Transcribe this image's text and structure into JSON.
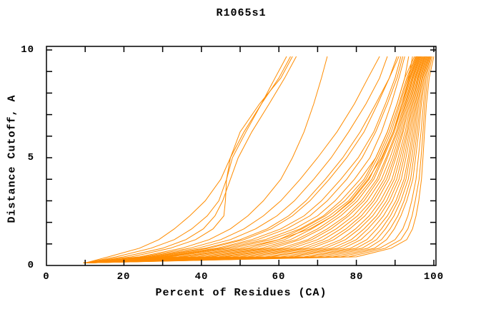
{
  "chart_data": {
    "type": "line",
    "title": "R1065s1",
    "xlabel": "Percent of Residues (CA)",
    "ylabel": "Distance Cutoff, A",
    "xlim": [
      0,
      100
    ],
    "ylim": [
      0,
      10
    ],
    "x_tick_labels": [
      "0",
      "20",
      "40",
      "60",
      "80",
      "100"
    ],
    "y_tick_labels": [
      "0",
      "5",
      "10"
    ],
    "x_minor_ticks": [
      10,
      20,
      30,
      40,
      50,
      60,
      70,
      80,
      90,
      100
    ],
    "y_minor_ticks": [
      1,
      2,
      3,
      4,
      5,
      6,
      7,
      8,
      9,
      10
    ],
    "grid": "off",
    "legend": "none",
    "line_color": "#ff8c00",
    "frame_color": "#000000",
    "background_color": "#ffffff",
    "curve_count": 38,
    "d_levels": [
      0.12,
      0.4,
      0.8,
      1.2,
      1.7,
      2.3,
      3.0,
      4.0,
      5.0,
      6.2,
      7.5,
      8.7,
      9.7
    ],
    "curves": [
      [
        10,
        16,
        24,
        29,
        33,
        37,
        41,
        45,
        47.5,
        51,
        55.5,
        60,
        63
      ],
      [
        10,
        18,
        27,
        33,
        37.5,
        41.5,
        44.5,
        46.5,
        47.5,
        50,
        55,
        60.5,
        63.5
      ],
      [
        10,
        20,
        30,
        36,
        40.5,
        43.5,
        45.5,
        47.5,
        49.5,
        53,
        57.5,
        61.5,
        64.5
      ],
      [
        10,
        22,
        32,
        38.5,
        43,
        45.8,
        46.2,
        46.5,
        48,
        51.5,
        55.5,
        59,
        62
      ],
      [
        10,
        24,
        35,
        42,
        47.5,
        52,
        56,
        60.5,
        63.5,
        66.5,
        69,
        71,
        72.5
      ],
      [
        10,
        25,
        37,
        45,
        51,
        56,
        60.5,
        65.5,
        70,
        75,
        79.5,
        83,
        86
      ],
      [
        10,
        26,
        39,
        47.5,
        54,
        59.5,
        64,
        69,
        73.5,
        78,
        82.5,
        86,
        88
      ],
      [
        10.5,
        28,
        42,
        51,
        58,
        63.5,
        68,
        73,
        77.5,
        82,
        85.5,
        88.5,
        90.5
      ],
      [
        9.5,
        30,
        45,
        54.5,
        62,
        68,
        72.5,
        77.5,
        81.5,
        85,
        88,
        90.5,
        92
      ],
      [
        10,
        32,
        48,
        58,
        65.5,
        71.5,
        76,
        81,
        85,
        88,
        90.5,
        92.5,
        93.5
      ],
      [
        10,
        27,
        41,
        50,
        57,
        62.5,
        67,
        72,
        76.5,
        81,
        85,
        88.5,
        91
      ],
      [
        10.5,
        34,
        50,
        60,
        68,
        74,
        78.5,
        83,
        86.5,
        89.5,
        92,
        93.5,
        94.5
      ],
      [
        9.5,
        29,
        44,
        53,
        60.5,
        66.5,
        71,
        76,
        80.5,
        84.5,
        87.5,
        90,
        91.5
      ],
      [
        10,
        31,
        46.5,
        56.5,
        64,
        70,
        74.5,
        79.5,
        83.5,
        86.5,
        89,
        91,
        92.5
      ],
      [
        10,
        35,
        52,
        60,
        66,
        72,
        77,
        82,
        85,
        88,
        90.5,
        92.5,
        95
      ],
      [
        9.5,
        37,
        53.5,
        61.5,
        67,
        73,
        78,
        82.5,
        85.5,
        88.5,
        91,
        93,
        95.3
      ],
      [
        10,
        39,
        55.5,
        63,
        68.5,
        74,
        78.8,
        83.3,
        86,
        89,
        91.3,
        93.3,
        95.5
      ],
      [
        10.5,
        41,
        57,
        64.5,
        70,
        75,
        79.5,
        84,
        86.7,
        89.5,
        91.7,
        93.6,
        95.7
      ],
      [
        9.5,
        42.5,
        58.5,
        65.5,
        71,
        76,
        80.3,
        84.5,
        87,
        89.8,
        92,
        93.8,
        95.9
      ],
      [
        10,
        44.5,
        60.5,
        67.5,
        72.5,
        77.3,
        81.3,
        85.3,
        87.7,
        90.3,
        92.3,
        94,
        96.1
      ],
      [
        10,
        46,
        62,
        68.5,
        73.5,
        78,
        82,
        85.8,
        88,
        90.6,
        92.6,
        94.3,
        96.3
      ],
      [
        10.5,
        48,
        63.5,
        70,
        74.8,
        79.2,
        82.8,
        86.5,
        88.7,
        91,
        92.8,
        94.5,
        96.5
      ],
      [
        9.5,
        50,
        65.5,
        71.5,
        76,
        80.3,
        83.8,
        87.2,
        89.3,
        91.4,
        93.1,
        94.7,
        96.7
      ],
      [
        10,
        52,
        67,
        73,
        77.3,
        81.3,
        84.5,
        87.8,
        89.8,
        91.8,
        93.4,
        95,
        96.9
      ],
      [
        10,
        54,
        68.5,
        74.2,
        78.3,
        82.2,
        85.3,
        88.4,
        90.2,
        92.1,
        93.7,
        95.2,
        97.1
      ],
      [
        10.5,
        56.5,
        70.5,
        76,
        79.8,
        83.3,
        86.2,
        89.2,
        90.8,
        92.6,
        94,
        95.4,
        97.3
      ],
      [
        9.5,
        58,
        72,
        77.2,
        80.8,
        84.2,
        87,
        89.8,
        91.3,
        93,
        94.3,
        95.7,
        97.5
      ],
      [
        10,
        60.5,
        73.7,
        78.7,
        82,
        85.2,
        87.8,
        90.4,
        91.8,
        93.3,
        94.6,
        95.9,
        97.7
      ],
      [
        10,
        62.5,
        75.2,
        80,
        83,
        86,
        88.5,
        91,
        92.3,
        93.7,
        94.9,
        96.1,
        97.9
      ],
      [
        10.5,
        64,
        76.7,
        81.2,
        84.2,
        87,
        89.3,
        91.6,
        92.8,
        94.1,
        95.2,
        96.4,
        98.1
      ],
      [
        9.5,
        66.5,
        78.5,
        82.7,
        85.3,
        88,
        90.2,
        92.3,
        93.4,
        94.5,
        95.5,
        96.6,
        98.3
      ],
      [
        10,
        68,
        80,
        84,
        86.5,
        88.8,
        90.8,
        92.8,
        93.8,
        94.9,
        95.8,
        96.9,
        98.5
      ],
      [
        10,
        70,
        81.5,
        85.2,
        87.5,
        89.7,
        91.5,
        93.4,
        94.3,
        95.3,
        96.1,
        97.1,
        98.7
      ],
      [
        10.5,
        72,
        83,
        86.5,
        88.7,
        90.7,
        92.3,
        94,
        94.8,
        95.7,
        96.5,
        97.4,
        98.9
      ],
      [
        9.5,
        74,
        84.7,
        87.8,
        89.8,
        91.5,
        93,
        94.6,
        95.3,
        96.1,
        96.8,
        97.7,
        99.1
      ],
      [
        10,
        76,
        86,
        90,
        92,
        93.3,
        94.3,
        95.4,
        96,
        96.7,
        97.3,
        98,
        99.3
      ],
      [
        10,
        78,
        87.5,
        91.5,
        93.3,
        94.4,
        95.2,
        96.2,
        96.7,
        97.2,
        97.7,
        98.4,
        99.6
      ],
      [
        10.5,
        80,
        89,
        93,
        94.5,
        95.4,
        96.1,
        96.8,
        97.2,
        97.6,
        98.1,
        98.8,
        100
      ]
    ]
  }
}
